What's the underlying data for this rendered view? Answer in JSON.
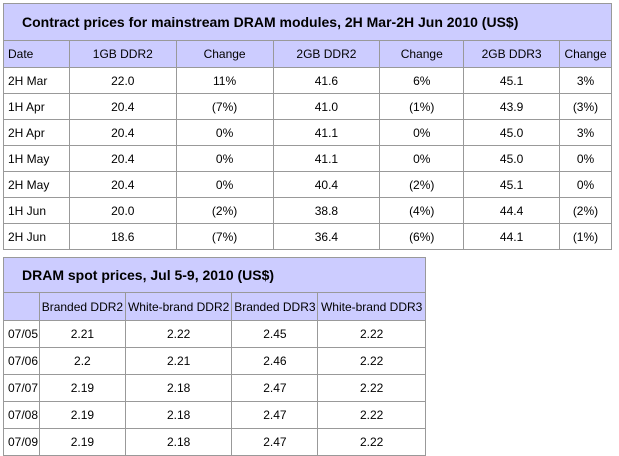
{
  "contract": {
    "title": "Contract prices for mainstream DRAM modules, 2H Mar-2H Jun 2010 (US$)",
    "headers": [
      "Date",
      "1GB DDR2",
      "Change",
      "2GB DDR2",
      "Change",
      "2GB DDR3",
      "Change"
    ],
    "rows": [
      [
        "2H Mar",
        "22.0",
        "11%",
        "41.6",
        "6%",
        "45.1",
        "3%"
      ],
      [
        "1H Apr",
        "20.4",
        "(7%)",
        "41.0",
        "(1%)",
        "43.9",
        "(3%)"
      ],
      [
        "2H Apr",
        "20.4",
        "0%",
        "41.1",
        "0%",
        "45.0",
        "3%"
      ],
      [
        "1H May",
        "20.4",
        "0%",
        "41.1",
        "0%",
        "45.0",
        "0%"
      ],
      [
        "2H May",
        "20.4",
        "0%",
        "40.4",
        "(2%)",
        "45.1",
        "0%"
      ],
      [
        "1H Jun",
        "20.0",
        "(2%)",
        "38.8",
        "(4%)",
        "44.4",
        "(2%)"
      ],
      [
        "2H Jun",
        "18.6",
        "(7%)",
        "36.4",
        "(6%)",
        "44.1",
        "(1%)"
      ]
    ]
  },
  "spot": {
    "title": "DRAM spot prices, Jul 5-9, 2010 (US$)",
    "headers": [
      "",
      "Branded DDR2",
      "White-brand DDR2",
      "Branded DDR3",
      "White-brand DDR3"
    ],
    "rows": [
      [
        "07/05",
        "2.21",
        "2.22",
        "2.45",
        "2.22"
      ],
      [
        "07/06",
        "2.2",
        "2.21",
        "2.46",
        "2.22"
      ],
      [
        "07/07",
        "2.19",
        "2.18",
        "2.47",
        "2.22"
      ],
      [
        "07/08",
        "2.19",
        "2.18",
        "2.47",
        "2.22"
      ],
      [
        "07/09",
        "2.19",
        "2.18",
        "2.47",
        "2.22"
      ]
    ]
  },
  "colors": {
    "header_bg": "#ccccff",
    "border": "#999999"
  }
}
